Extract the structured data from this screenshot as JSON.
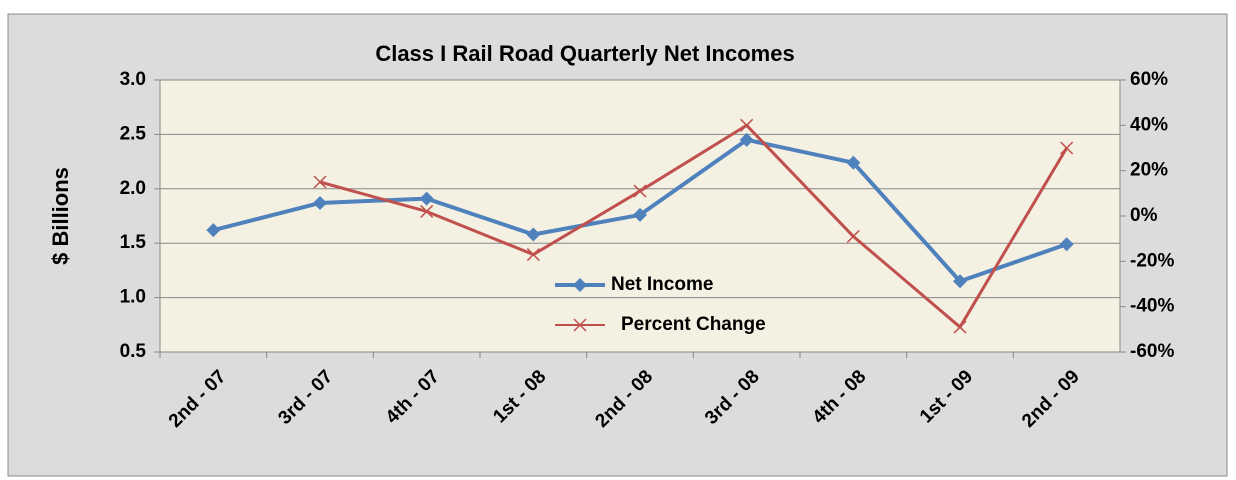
{
  "chart_data": {
    "type": "line",
    "title": "Class I Rail Road Quarterly Net Incomes",
    "y_label": "$ Billions",
    "categories": [
      "2nd - 07",
      "3rd - 07",
      "4th - 07",
      "1st - 08",
      "2nd - 08",
      "3rd - 08",
      "4th - 08",
      "1st - 09",
      "2nd - 09"
    ],
    "series": [
      {
        "name": "Net Income",
        "color": "#4f81bd",
        "marker": "diamond",
        "values": [
          1.62,
          1.87,
          1.91,
          1.58,
          1.76,
          2.45,
          2.24,
          1.15,
          1.49
        ]
      },
      {
        "name": "Percent Change",
        "color": "#c0504d",
        "marker": "x",
        "axis": "y2",
        "values": [
          null,
          15,
          2,
          -17,
          11,
          40,
          -9,
          -49,
          30
        ]
      }
    ],
    "ylim": [
      0.5,
      3.0
    ],
    "yticks": [
      {
        "value": 0.5,
        "label": "0.5"
      },
      {
        "value": 1.0,
        "label": "1.0"
      },
      1.5,
      {
        "value": 2.0,
        "label": "2.0"
      },
      2.5,
      {
        "value": 3.0,
        "label": "3.0"
      }
    ],
    "y2lim": [
      -60,
      60
    ],
    "y2ticks": [
      {
        "value": -60,
        "label": "-60%"
      },
      {
        "value": -40,
        "label": "-40%"
      },
      {
        "value": -20,
        "label": "-20%"
      },
      {
        "value": 0,
        "label": "0%"
      },
      {
        "value": 20,
        "label": "20%"
      },
      {
        "value": 40,
        "label": "40%"
      },
      {
        "value": 60,
        "label": "60%"
      }
    ],
    "grid": true,
    "legend": "center"
  }
}
